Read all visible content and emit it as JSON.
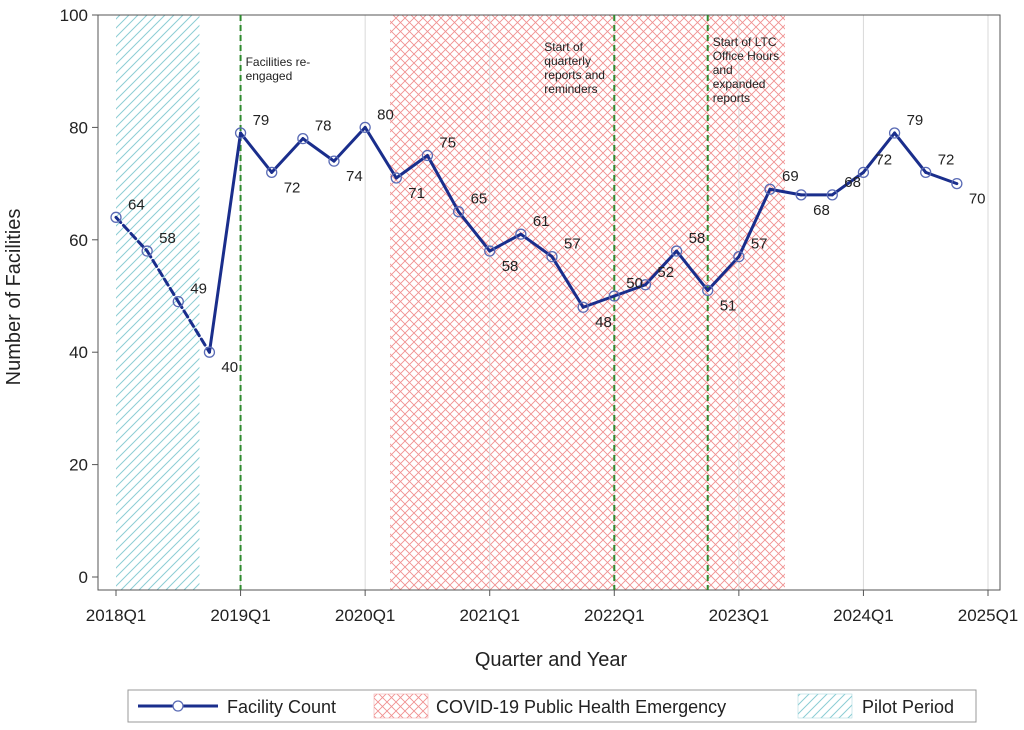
{
  "chart_data": {
    "type": "line",
    "xlabel": "Quarter and Year",
    "ylabel": "Number of Facilities",
    "ylim": [
      0,
      100
    ],
    "yticks": [
      0,
      20,
      40,
      60,
      80,
      100
    ],
    "xlim": [
      2018.0,
      2025.0
    ],
    "xticks": [
      {
        "x": 2018.0,
        "label": "2018Q1"
      },
      {
        "x": 2019.0,
        "label": "2019Q1"
      },
      {
        "x": 2020.0,
        "label": "2020Q1"
      },
      {
        "x": 2021.0,
        "label": "2021Q1"
      },
      {
        "x": 2022.0,
        "label": "2022Q1"
      },
      {
        "x": 2023.0,
        "label": "2023Q1"
      },
      {
        "x": 2024.0,
        "label": "2024Q1"
      },
      {
        "x": 2025.0,
        "label": "2025Q1"
      }
    ],
    "grid": "vertical",
    "series": [
      {
        "name": "Facility Count",
        "color": "#1a2e8c",
        "points": [
          {
            "x": 2018.0,
            "y": 64,
            "label": "64",
            "dashed_to_next": true
          },
          {
            "x": 2018.25,
            "y": 58,
            "label": "58",
            "dashed_to_next": true
          },
          {
            "x": 2018.5,
            "y": 49,
            "label": "49",
            "dashed_to_next": true
          },
          {
            "x": 2018.75,
            "y": 40,
            "label": "40"
          },
          {
            "x": 2019.0,
            "y": 79,
            "label": "79"
          },
          {
            "x": 2019.25,
            "y": 72,
            "label": "72"
          },
          {
            "x": 2019.5,
            "y": 78,
            "label": "78"
          },
          {
            "x": 2019.75,
            "y": 74,
            "label": "74"
          },
          {
            "x": 2020.0,
            "y": 80,
            "label": "80"
          },
          {
            "x": 2020.25,
            "y": 71,
            "label": "71"
          },
          {
            "x": 2020.5,
            "y": 75,
            "label": "75"
          },
          {
            "x": 2020.75,
            "y": 65,
            "label": "65"
          },
          {
            "x": 2021.0,
            "y": 58,
            "label": "58"
          },
          {
            "x": 2021.25,
            "y": 61,
            "label": "61"
          },
          {
            "x": 2021.5,
            "y": 57,
            "label": "57"
          },
          {
            "x": 2021.75,
            "y": 48,
            "label": "48"
          },
          {
            "x": 2022.0,
            "y": 50,
            "label": "50"
          },
          {
            "x": 2022.25,
            "y": 52,
            "label": "52"
          },
          {
            "x": 2022.5,
            "y": 58,
            "label": "58"
          },
          {
            "x": 2022.75,
            "y": 51,
            "label": "51"
          },
          {
            "x": 2023.0,
            "y": 57,
            "label": "57"
          },
          {
            "x": 2023.25,
            "y": 69,
            "label": "69"
          },
          {
            "x": 2023.5,
            "y": 68,
            "label": "68"
          },
          {
            "x": 2023.75,
            "y": 68,
            "label": "68"
          },
          {
            "x": 2024.0,
            "y": 72,
            "label": "72"
          },
          {
            "x": 2024.25,
            "y": 79,
            "label": "79"
          },
          {
            "x": 2024.5,
            "y": 72,
            "label": "72"
          },
          {
            "x": 2024.75,
            "y": 70,
            "label": "70"
          }
        ]
      }
    ],
    "shaded_periods": [
      {
        "name": "Pilot Period",
        "start": 2018.0,
        "end": 2018.67,
        "pattern": "diagonal-hatch",
        "color": "#7fc8d0"
      },
      {
        "name": "COVID-19 Public Health Emergency",
        "start": 2020.2,
        "end": 2023.37,
        "pattern": "crosshatch",
        "color": "#f08080"
      }
    ],
    "event_lines": [
      {
        "x": 2019.0,
        "color": "#2e8b2e",
        "label": [
          "Facilities re-",
          "engaged"
        ]
      },
      {
        "x": 2022.0,
        "color": "#2e8b2e",
        "label": [
          "Start of",
          "quarterly",
          "reports and",
          "reminders"
        ]
      },
      {
        "x": 2022.75,
        "color": "#2e8b2e",
        "label": [
          "Start of LTC",
          "Office Hours",
          "and",
          "expanded",
          "reports"
        ]
      }
    ],
    "legend": {
      "position": "bottom",
      "items": [
        {
          "label": "Facility Count",
          "kind": "line-marker"
        },
        {
          "label": "COVID-19 Public Health Emergency",
          "kind": "crosshatch"
        },
        {
          "label": "Pilot Period",
          "kind": "diagonal-hatch"
        }
      ]
    }
  }
}
